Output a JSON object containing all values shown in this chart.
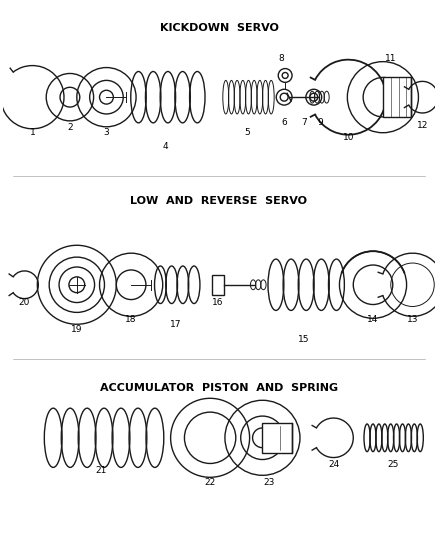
{
  "background_color": "#ffffff",
  "line_color": "#1a1a1a",
  "kickdown_label": "KICKDOWN  SERVO",
  "lowrev_label": "LOW  AND  REVERSE  SERVO",
  "accum_label": "ACCUMULATOR  PISTON  AND  SPRING"
}
